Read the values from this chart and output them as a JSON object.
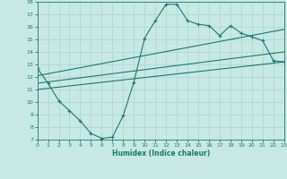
{
  "xlabel": "Humidex (Indice chaleur)",
  "bg_color": "#c8e8e4",
  "grid_color": "#afd8d4",
  "line_color": "#1a7a6e",
  "xlim": [
    0,
    23
  ],
  "ylim": [
    7,
    18
  ],
  "yticks": [
    7,
    8,
    9,
    10,
    11,
    12,
    13,
    14,
    15,
    16,
    17,
    18
  ],
  "xticks": [
    0,
    1,
    2,
    3,
    4,
    5,
    6,
    7,
    8,
    9,
    10,
    11,
    12,
    13,
    14,
    15,
    16,
    17,
    18,
    19,
    20,
    21,
    22,
    23
  ],
  "curve_x": [
    0,
    1,
    2,
    3,
    4,
    5,
    6,
    7,
    8,
    9,
    10,
    11,
    12,
    13,
    14,
    15,
    16,
    17,
    18,
    19,
    20,
    21,
    22,
    23
  ],
  "curve_y": [
    12.7,
    11.5,
    10.1,
    9.3,
    8.5,
    7.5,
    7.1,
    7.2,
    8.9,
    11.6,
    15.1,
    16.5,
    17.8,
    17.8,
    16.5,
    16.2,
    16.1,
    15.3,
    16.1,
    15.5,
    15.2,
    14.9,
    13.3,
    13.2
  ],
  "line1_x": [
    0,
    23
  ],
  "line1_y": [
    11.0,
    13.2
  ],
  "line2_x": [
    0,
    23
  ],
  "line2_y": [
    11.5,
    14.0
  ],
  "line3_x": [
    0,
    23
  ],
  "line3_y": [
    12.1,
    15.8
  ]
}
